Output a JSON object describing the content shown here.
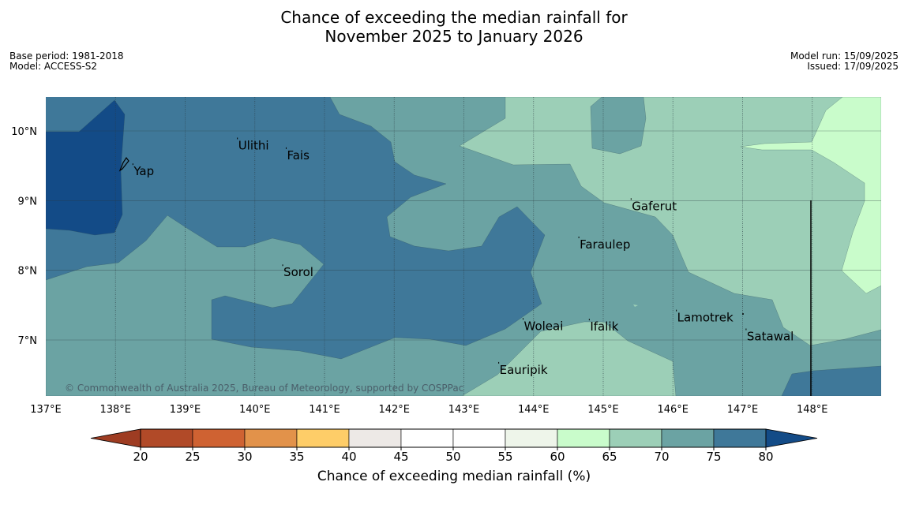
{
  "title_line1": "Chance of exceeding the median rainfall for",
  "title_line2": "November 2025 to January 2026",
  "meta_left": [
    "Base period: 1981-2018",
    "Model: ACCESS-S2"
  ],
  "meta_right": [
    "Model run: 15/09/2025",
    "Issued: 17/09/2025"
  ],
  "copyright": "© Commonwealth of Australia 2025, Bureau of Meteorology, supported by COSPPac",
  "lon_labels": [
    "137°E",
    "138°E",
    "139°E",
    "140°E",
    "141°E",
    "142°E",
    "143°E",
    "144°E",
    "145°E",
    "146°E",
    "147°E",
    "148°E"
  ],
  "lat_labels": [
    "10°N",
    "9°N",
    "8°N",
    "7°N"
  ],
  "places": [
    {
      "name": "Ulithi",
      "lon": 139.75,
      "lat": 9.87
    },
    {
      "name": "Fais",
      "lon": 140.45,
      "lat": 9.73
    },
    {
      "name": "Yap",
      "lon": 138.25,
      "lat": 9.5
    },
    {
      "name": "Gaferut",
      "lon": 145.4,
      "lat": 9.0
    },
    {
      "name": "Faraulep",
      "lon": 144.65,
      "lat": 8.45
    },
    {
      "name": "Sorol",
      "lon": 140.4,
      "lat": 8.05
    },
    {
      "name": "Woleai",
      "lon": 143.85,
      "lat": 7.28
    },
    {
      "name": "Ifalik",
      "lon": 144.8,
      "lat": 7.27
    },
    {
      "name": "Lamotrek",
      "lon": 146.05,
      "lat": 7.4
    },
    {
      "name": "Satawal",
      "lon": 147.05,
      "lat": 7.13
    },
    {
      "name": "Eauripik",
      "lon": 143.5,
      "lat": 6.65
    }
  ],
  "colorbar": {
    "ticks": [
      "20",
      "25",
      "30",
      "35",
      "40",
      "45",
      "50",
      "55",
      "60",
      "65",
      "70",
      "75",
      "80"
    ],
    "colors": [
      "#b14a28",
      "#cf6232",
      "#e2924a",
      "#fecd68",
      "#ede9e6",
      "#ffffff",
      "#ffffff",
      "#eef5ea",
      "#c9fccb",
      "#9ccfb7",
      "#6ba3a3",
      "#3f7899"
    ],
    "under_color": "#9e3c22",
    "over_color": "#134b87",
    "label": "Chance of exceeding median rainfall (%)"
  },
  "zone_colors": {
    "c80": "#134b87",
    "c75": "#3f7899",
    "c70": "#6ba3a3",
    "c65": "#9ccfb7",
    "c60": "#c9fccb"
  }
}
